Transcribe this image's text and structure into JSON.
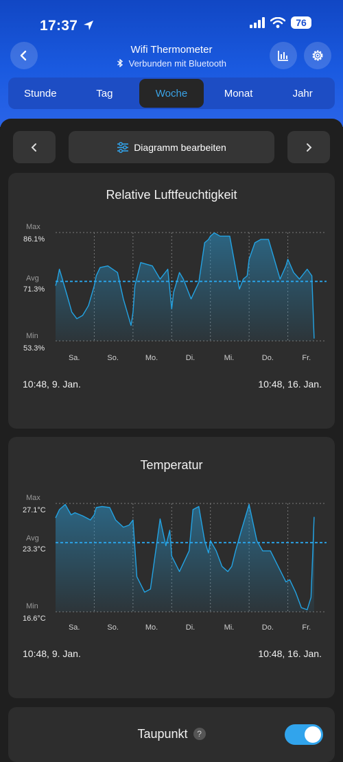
{
  "status_bar": {
    "time": "17:37",
    "battery": "76"
  },
  "header": {
    "title": "Wifi Thermometer",
    "subtitle": "Verbunden mit Bluetooth",
    "icons": [
      "back-icon",
      "bar-chart-icon",
      "gear-icon",
      "bluetooth-icon"
    ]
  },
  "tabs": [
    "Stunde",
    "Tag",
    "Woche",
    "Monat",
    "Jahr"
  ],
  "active_tab": "Woche",
  "toolbar": {
    "edit_label": "Diagramm bearbeiten"
  },
  "colors": {
    "accent": "#31a4ec",
    "line": "#23a3e3",
    "header": "#1a50d2",
    "card": "#2d2d2d"
  },
  "charts": [
    {
      "title": "Relative Luftfeuchtigkeit",
      "max_label": "Max",
      "max_value": "86.1%",
      "avg_label": "Avg",
      "avg_value": "71.3%",
      "min_label": "Min",
      "min_value": "53.3%",
      "days": [
        "Sa.",
        "So.",
        "Mo.",
        "Di.",
        "Mi.",
        "Do.",
        "Fr."
      ],
      "range_start": "10:48,  9. Jan.",
      "range_end": "10:48,  16. Jan."
    },
    {
      "title": "Temperatur",
      "max_label": "Max",
      "max_value": "27.1°C",
      "avg_label": "Avg",
      "avg_value": "23.3°C",
      "min_label": "Min",
      "min_value": "16.6°C",
      "days": [
        "Sa.",
        "So.",
        "Mo.",
        "Di.",
        "Mi.",
        "Do.",
        "Fr."
      ],
      "range_start": "10:48,  9. Jan.",
      "range_end": "10:48,  16. Jan."
    }
  ],
  "chart_data": [
    {
      "type": "area",
      "title": "Relative Luftfeuchtigkeit",
      "unit": "%",
      "ylim": [
        53.3,
        86.1
      ],
      "avg": 71.3,
      "x": [
        0,
        0.05,
        0.1,
        0.15,
        0.3,
        0.42,
        0.55,
        0.7,
        0.85,
        1,
        1.05,
        1.15,
        1.35,
        1.6,
        1.75,
        1.95,
        2,
        2.05,
        2.2,
        2.5,
        2.7,
        2.9,
        3,
        3.05,
        3.2,
        3.3,
        3.5,
        3.7,
        3.85,
        3.95,
        4,
        4.1,
        4.25,
        4.5,
        4.75,
        4.85,
        4.95,
        5,
        5.15,
        5.3,
        5.5,
        5.8,
        5.95,
        6,
        6.15,
        6.3,
        6.5,
        6.62,
        6.68
      ],
      "series": [
        {
          "values": [
            70,
            72,
            75,
            73,
            67,
            62,
            60,
            61,
            64,
            70,
            73,
            75.5,
            76,
            74,
            66,
            58,
            62,
            70,
            77,
            76,
            72,
            75,
            63,
            68,
            74,
            72,
            66,
            71,
            83,
            84,
            85,
            86,
            85,
            85,
            69,
            72,
            73,
            78,
            83,
            84,
            84,
            72,
            76,
            78,
            74,
            72,
            75,
            73,
            54
          ]
        }
      ],
      "days": [
        "Sa.",
        "So.",
        "Mo.",
        "Di.",
        "Mi.",
        "Do.",
        "Fr."
      ]
    },
    {
      "type": "area",
      "title": "Temperatur",
      "unit": "°C",
      "ylim": [
        16.6,
        27.1
      ],
      "avg": 23.3,
      "x": [
        0,
        0.1,
        0.25,
        0.4,
        0.5,
        0.7,
        0.9,
        1,
        1.05,
        1.2,
        1.4,
        1.55,
        1.75,
        1.9,
        2,
        2.1,
        2.3,
        2.45,
        2.7,
        2.85,
        2.95,
        3,
        3.2,
        3.45,
        3.55,
        3.7,
        3.85,
        3.95,
        4,
        4.15,
        4.3,
        4.45,
        4.55,
        4.65,
        4.8,
        5,
        5.2,
        5.35,
        5.55,
        5.75,
        5.95,
        6.05,
        6.2,
        6.35,
        6.5,
        6.6,
        6.68
      ],
      "series": [
        {
          "values": [
            25.7,
            26.5,
            27,
            26,
            26.2,
            25.9,
            25.5,
            26,
            26.7,
            26.8,
            26.7,
            25.5,
            24.8,
            25,
            25.5,
            20,
            18.5,
            18.8,
            25.6,
            23,
            24.5,
            22,
            20.5,
            22.5,
            26.5,
            26.8,
            23.5,
            22.3,
            23.5,
            22.5,
            21,
            20.5,
            21,
            22.5,
            24.5,
            27,
            23.5,
            22.5,
            22.5,
            21,
            19.5,
            19.7,
            18.5,
            17,
            16.8,
            18,
            25.8
          ]
        }
      ],
      "days": [
        "Sa.",
        "So.",
        "Mo.",
        "Di.",
        "Mi.",
        "Do.",
        "Fr."
      ]
    }
  ],
  "bottom_card": {
    "title": "Taupunkt",
    "help": "?",
    "toggle_on": true
  }
}
